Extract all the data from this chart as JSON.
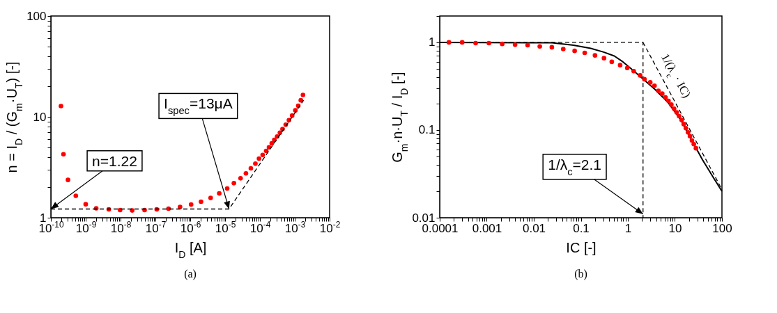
{
  "chart_data": [
    {
      "type": "scatter",
      "xlabel": "I$_{D}$ [A]",
      "ylabel": "n = I$_{D}$ / (G$_{m}$·U$_{T}$) [-]",
      "log": "xy",
      "xlim": [
        1e-10,
        0.01
      ],
      "ylim": [
        1,
        100
      ],
      "xticks": [
        {
          "value": 1e-10,
          "label": "10$^{-10}$"
        },
        {
          "value": 2e-10,
          "label": null
        },
        {
          "value": 3e-10,
          "label": null
        },
        {
          "value": 4e-10,
          "label": null
        },
        {
          "value": 5e-10,
          "label": null
        },
        {
          "value": 6e-10,
          "label": null
        },
        {
          "value": 7e-10,
          "label": null
        },
        {
          "value": 8e-10,
          "label": null
        },
        {
          "value": 9e-10,
          "label": null
        },
        {
          "value": 1e-09,
          "label": "10$^{-9}$"
        },
        {
          "value": 2e-09,
          "label": null
        },
        {
          "value": 3e-09,
          "label": null
        },
        {
          "value": 4e-09,
          "label": null
        },
        {
          "value": 5e-09,
          "label": null
        },
        {
          "value": 6e-09,
          "label": null
        },
        {
          "value": 7e-09,
          "label": null
        },
        {
          "value": 8e-09,
          "label": null
        },
        {
          "value": 9e-09,
          "label": null
        },
        {
          "value": 1e-08,
          "label": "10$^{-8}$"
        },
        {
          "value": 2e-08,
          "label": null
        },
        {
          "value": 3e-08,
          "label": null
        },
        {
          "value": 4e-08,
          "label": null
        },
        {
          "value": 5e-08,
          "label": null
        },
        {
          "value": 6e-08,
          "label": null
        },
        {
          "value": 7e-08,
          "label": null
        },
        {
          "value": 8e-08,
          "label": null
        },
        {
          "value": 9e-08,
          "label": null
        },
        {
          "value": 1e-07,
          "label": "10$^{-7}$"
        },
        {
          "value": 2e-07,
          "label": null
        },
        {
          "value": 3e-07,
          "label": null
        },
        {
          "value": 4e-07,
          "label": null
        },
        {
          "value": 5e-07,
          "label": null
        },
        {
          "value": 6e-07,
          "label": null
        },
        {
          "value": 7e-07,
          "label": null
        },
        {
          "value": 8e-07,
          "label": null
        },
        {
          "value": 9e-07,
          "label": null
        },
        {
          "value": 1e-06,
          "label": "10$^{-6}$"
        },
        {
          "value": 2e-06,
          "label": null
        },
        {
          "value": 3e-06,
          "label": null
        },
        {
          "value": 4e-06,
          "label": null
        },
        {
          "value": 5e-06,
          "label": null
        },
        {
          "value": 6e-06,
          "label": null
        },
        {
          "value": 7e-06,
          "label": null
        },
        {
          "value": 8e-06,
          "label": null
        },
        {
          "value": 9e-06,
          "label": null
        },
        {
          "value": 1e-05,
          "label": "10$^{-5}$"
        },
        {
          "value": 2e-05,
          "label": null
        },
        {
          "value": 3e-05,
          "label": null
        },
        {
          "value": 4e-05,
          "label": null
        },
        {
          "value": 5e-05,
          "label": null
        },
        {
          "value": 6e-05,
          "label": null
        },
        {
          "value": 7e-05,
          "label": null
        },
        {
          "value": 8e-05,
          "label": null
        },
        {
          "value": 9e-05,
          "label": null
        },
        {
          "value": 0.0001,
          "label": "10$^{-4}$"
        },
        {
          "value": 0.0002,
          "label": null
        },
        {
          "value": 0.0003,
          "label": null
        },
        {
          "value": 0.0004,
          "label": null
        },
        {
          "value": 0.0005,
          "label": null
        },
        {
          "value": 0.0006,
          "label": null
        },
        {
          "value": 0.0007,
          "label": null
        },
        {
          "value": 0.0008,
          "label": null
        },
        {
          "value": 0.0009,
          "label": null
        },
        {
          "value": 0.001,
          "label": "10$^{-3}$"
        },
        {
          "value": 0.002,
          "label": null
        },
        {
          "value": 0.003,
          "label": null
        },
        {
          "value": 0.004,
          "label": null
        },
        {
          "value": 0.005,
          "label": null
        },
        {
          "value": 0.006,
          "label": null
        },
        {
          "value": 0.007,
          "label": null
        },
        {
          "value": 0.008,
          "label": null
        },
        {
          "value": 0.009,
          "label": null
        },
        {
          "value": 0.01,
          "label": "10$^{-2}$"
        }
      ],
      "yticks": [
        1,
        {
          "value": 2,
          "label": null
        },
        {
          "value": 3,
          "label": null
        },
        {
          "value": 4,
          "label": null
        },
        {
          "value": 5,
          "label": null
        },
        {
          "value": 6,
          "label": null
        },
        {
          "value": 7,
          "label": null
        },
        {
          "value": 8,
          "label": null
        },
        {
          "value": 9,
          "label": null
        },
        10,
        {
          "value": 20,
          "label": null
        },
        {
          "value": 30,
          "label": null
        },
        {
          "value": 40,
          "label": null
        },
        {
          "value": 50,
          "label": null
        },
        {
          "value": 60,
          "label": null
        },
        {
          "value": 70,
          "label": null
        },
        {
          "value": 80,
          "label": null
        },
        {
          "value": 90,
          "label": null
        },
        100
      ],
      "series": [
        {
          "marker": "circle",
          "color": "#ff0000",
          "x": [
            1.95e-10,
            2.3e-10,
            3.1e-10,
            5.2e-10,
            1e-09,
            2e-09,
            4.6e-09,
            9.7e-09,
            2.15e-08,
            4.9e-08,
            1.09e-07,
            2.38e-07,
            5.1e-07,
            1.06e-06,
            2.04e-06,
            3.85e-06,
            6.8e-06,
            1.15e-05,
            1.79e-05,
            2.78e-05,
            3.97e-05,
            5.5e-05,
            7.4e-05,
            9.4e-05,
            0.00012,
            0.000151,
            0.000182,
            0.000219,
            0.000259,
            0.000312,
            0.000375,
            0.000445,
            0.00055,
            0.00068,
            0.00084,
            0.00104,
            0.00126,
            0.00149,
            0.00172
          ],
          "values": [
            12.8,
            4.26,
            2.37,
            1.65,
            1.36,
            1.24,
            1.21,
            1.19,
            1.18,
            1.19,
            1.21,
            1.23,
            1.28,
            1.35,
            1.44,
            1.57,
            1.74,
            1.95,
            2.2,
            2.46,
            2.75,
            3.09,
            3.44,
            3.85,
            4.19,
            4.59,
            4.99,
            5.46,
            5.92,
            6.39,
            6.97,
            7.56,
            8.37,
            9.26,
            10.3,
            11.6,
            12.9,
            14.6,
            16.5
          ]
        },
        {
          "type": "line",
          "line_style": "dashed",
          "color": "#000000",
          "x": [
            1e-10,
            1.3e-05,
            0.00179
          ],
          "values": [
            1.22,
            1.22,
            14.6
          ]
        }
      ],
      "annotations": [
        "(a)",
        {
          "text": "n=1.22",
          "x": 1e-10,
          "y": 1.22
        },
        {
          "text": "I$_{spec}$=13μA",
          "x": 1.3e-05,
          "y": 1.22
        }
      ]
    },
    {
      "type": "scatter",
      "xlabel": "IC [-]",
      "ylabel": "G$_{m}$·n·U$_{T}$ / I$_{D}$ [-]",
      "log": "xy",
      "xlim": [
        0.0001,
        100
      ],
      "ylim": [
        0.01,
        2
      ],
      "xticks": [
        0.0001,
        {
          "value": 0.0002,
          "label": null
        },
        {
          "value": 0.0003,
          "label": null
        },
        {
          "value": 0.0004,
          "label": null
        },
        {
          "value": 0.0005,
          "label": null
        },
        {
          "value": 0.0006,
          "label": null
        },
        {
          "value": 0.0007,
          "label": null
        },
        {
          "value": 0.0008,
          "label": null
        },
        {
          "value": 0.0009,
          "label": null
        },
        0.001,
        {
          "value": 0.002,
          "label": null
        },
        {
          "value": 0.003,
          "label": null
        },
        {
          "value": 0.004,
          "label": null
        },
        {
          "value": 0.005,
          "label": null
        },
        {
          "value": 0.006,
          "label": null
        },
        {
          "value": 0.007,
          "label": null
        },
        {
          "value": 0.008,
          "label": null
        },
        {
          "value": 0.009,
          "label": null
        },
        0.01,
        {
          "value": 0.02,
          "label": null
        },
        {
          "value": 0.03,
          "label": null
        },
        {
          "value": 0.04,
          "label": null
        },
        {
          "value": 0.05,
          "label": null
        },
        {
          "value": 0.06,
          "label": null
        },
        {
          "value": 0.07,
          "label": null
        },
        {
          "value": 0.08,
          "label": null
        },
        {
          "value": 0.09,
          "label": null
        },
        0.1,
        {
          "value": 0.2,
          "label": null
        },
        {
          "value": 0.3,
          "label": null
        },
        {
          "value": 0.4,
          "label": null
        },
        {
          "value": 0.5,
          "label": null
        },
        {
          "value": 0.6,
          "label": null
        },
        {
          "value": 0.7,
          "label": null
        },
        {
          "value": 0.8,
          "label": null
        },
        {
          "value": 0.9,
          "label": null
        },
        1,
        {
          "value": 2,
          "label": null
        },
        {
          "value": 3,
          "label": null
        },
        {
          "value": 4,
          "label": null
        },
        {
          "value": 5,
          "label": null
        },
        {
          "value": 6,
          "label": null
        },
        {
          "value": 7,
          "label": null
        },
        {
          "value": 8,
          "label": null
        },
        {
          "value": 9,
          "label": null
        },
        10,
        {
          "value": 20,
          "label": null
        },
        {
          "value": 30,
          "label": null
        },
        {
          "value": 40,
          "label": null
        },
        {
          "value": 50,
          "label": null
        },
        {
          "value": 60,
          "label": null
        },
        {
          "value": 70,
          "label": null
        },
        {
          "value": 80,
          "label": null
        },
        {
          "value": 90,
          "label": null
        },
        100
      ],
      "yticks": [
        0.01,
        {
          "value": 0.02,
          "label": null
        },
        {
          "value": 0.03,
          "label": null
        },
        {
          "value": 0.04,
          "label": null
        },
        {
          "value": 0.05,
          "label": null
        },
        {
          "value": 0.06,
          "label": null
        },
        {
          "value": 0.07,
          "label": null
        },
        {
          "value": 0.08,
          "label": null
        },
        {
          "value": 0.09,
          "label": null
        },
        0.1,
        {
          "value": 0.2,
          "label": null
        },
        {
          "value": 0.3,
          "label": null
        },
        {
          "value": 0.4,
          "label": null
        },
        {
          "value": 0.5,
          "label": null
        },
        {
          "value": 0.6,
          "label": null
        },
        {
          "value": 0.7,
          "label": null
        },
        {
          "value": 0.8,
          "label": null
        },
        {
          "value": 0.9,
          "label": null
        },
        1,
        {
          "value": 2,
          "label": null
        }
      ],
      "series": [
        {
          "type": "line",
          "color": "#000000",
          "x": [
            0.0001,
            0.0244,
            0.07,
            0.162,
            0.305,
            0.515,
            0.785,
            1.08,
            2.02,
            3.8,
            7.1,
            13.4,
            22.7,
            38.4,
            65,
            100
          ],
          "values": [
            1,
            0.99,
            0.93,
            0.855,
            0.775,
            0.7,
            0.6,
            0.52,
            0.39,
            0.29,
            0.207,
            0.13,
            0.077,
            0.046,
            0.029,
            0.02
          ]
        },
        {
          "type": "line",
          "line_style": "dashed",
          "color": "#000000",
          "x": [
            0.0001,
            2.1,
            2.1
          ],
          "values": [
            1,
            1,
            0.01
          ]
        },
        {
          "type": "line",
          "line_style": "dashed",
          "color": "#000000",
          "x": [
            2.1,
            100
          ],
          "values": [
            1,
            0.021
          ]
        },
        {
          "marker": "circle",
          "color": "#ff0000",
          "x": [
            0.000157,
            0.0003,
            0.00058,
            0.00111,
            0.00213,
            0.004,
            0.0074,
            0.0134,
            0.0242,
            0.0423,
            0.0738,
            0.121,
            0.2,
            0.311,
            0.455,
            0.685,
            0.97,
            1.33,
            1.82,
            2.25,
            2.99,
            3.68,
            4.45,
            5.38,
            6.3,
            7.3,
            8.4,
            9.6,
            10.9,
            12.3,
            13.9,
            15.4,
            17.1,
            19,
            20.9,
            23,
            25.2,
            28
          ],
          "values": [
            1,
            1,
            0.98,
            0.98,
            0.96,
            0.94,
            0.93,
            0.9,
            0.88,
            0.84,
            0.8,
            0.76,
            0.71,
            0.66,
            0.6,
            0.55,
            0.51,
            0.47,
            0.42,
            0.38,
            0.35,
            0.32,
            0.28,
            0.26,
            0.236,
            0.215,
            0.195,
            0.175,
            0.159,
            0.144,
            0.13,
            0.117,
            0.105,
            0.094,
            0.085,
            0.076,
            0.069,
            0.062
          ]
        }
      ],
      "annotations": [
        "(b)",
        {
          "text": "1/λ$_{c}$=2.1",
          "x": 2.1,
          "y": 0.011
        },
        "1/(λ$_{c}$ · IC)"
      ]
    }
  ]
}
